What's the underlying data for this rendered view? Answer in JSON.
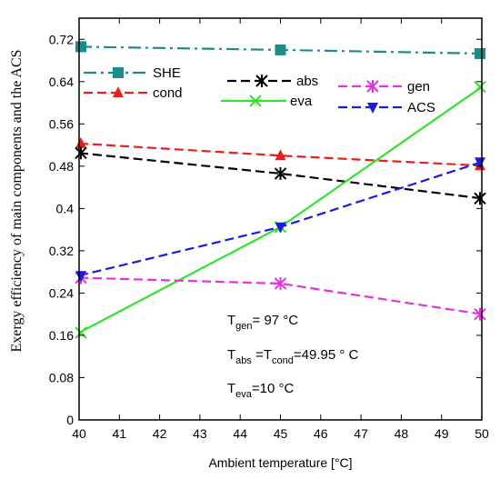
{
  "chart_data": {
    "type": "line",
    "title": "",
    "xlabel": "Ambient temperature [°C]",
    "ylabel": "Exergy efficiency of main components and the ACS",
    "xlim": [
      40,
      50
    ],
    "ylim": [
      0,
      0.76
    ],
    "xticks": [
      "40",
      "41",
      "42",
      "43",
      "44",
      "45",
      "46",
      "47",
      "48",
      "49",
      "50"
    ],
    "yticks": [
      "0",
      "0.08",
      "0.16",
      "0.24",
      "0.32",
      "0.4",
      "0.48",
      "0.56",
      "0.64",
      "0.72"
    ],
    "grid": false,
    "series": [
      {
        "name": "SHE",
        "color": "#1a8c8c",
        "marker": "square",
        "dash": "dashdot",
        "x": [
          40,
          45,
          50
        ],
        "y": [
          0.706,
          0.7,
          0.693
        ]
      },
      {
        "name": "cond",
        "color": "#e8201c",
        "marker": "triangle-up",
        "dash": "dash",
        "x": [
          40,
          45,
          50
        ],
        "y": [
          0.523,
          0.5,
          0.481
        ]
      },
      {
        "name": "abs",
        "color": "#000000",
        "marker": "star",
        "dash": "dash",
        "x": [
          40,
          45,
          50
        ],
        "y": [
          0.505,
          0.466,
          0.419
        ]
      },
      {
        "name": "eva",
        "color": "#33e02a",
        "marker": "x",
        "dash": "solid",
        "x": [
          40,
          45,
          50
        ],
        "y": [
          0.165,
          0.365,
          0.63
        ]
      },
      {
        "name": "gen",
        "color": "#e630e6",
        "marker": "star",
        "dash": "dash",
        "x": [
          40,
          45,
          50
        ],
        "y": [
          0.269,
          0.258,
          0.2
        ]
      },
      {
        "name": "ACS",
        "color": "#1a1ae0",
        "marker": "triangle-down",
        "dash": "dash",
        "x": [
          40,
          45,
          50
        ],
        "y": [
          0.273,
          0.365,
          0.488
        ]
      }
    ],
    "annotations": [
      {
        "base": "T",
        "sub": "gen",
        "text": "= 97 °C"
      },
      {
        "base": "T",
        "sub": "abs",
        "text": " =T",
        "sub2": "cond",
        "text2": "=49.95 ° C"
      },
      {
        "base": "T",
        "sub": "eva",
        "text": "=10 °C"
      }
    ]
  }
}
